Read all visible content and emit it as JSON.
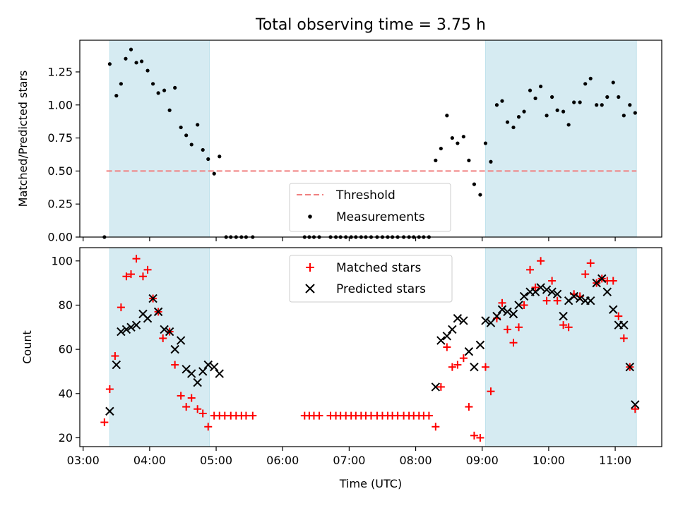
{
  "chart_data": [
    {
      "type": "scatter",
      "panel": "top",
      "title": "Total observing time = 3.75 h",
      "xlabel": "",
      "ylabel": "Matched/Predicted stars",
      "xlim_hours": [
        2.95,
        11.7
      ],
      "ylim": [
        0,
        1.49
      ],
      "yticks": [
        0.0,
        0.25,
        0.5,
        0.75,
        1.0,
        1.25
      ],
      "ytick_labels": [
        "0.00",
        "0.25",
        "0.50",
        "0.75",
        "1.00",
        "1.25"
      ],
      "shaded_spans_hours": [
        [
          3.4,
          4.9
        ],
        [
          9.05,
          11.32
        ]
      ],
      "threshold": {
        "name": "Threshold",
        "value": 0.5,
        "color": "#f08080",
        "style": "dashed"
      },
      "series": [
        {
          "name": "Measurements",
          "color": "#000000",
          "x": [
            3.32,
            3.4,
            3.5,
            3.57,
            3.64,
            3.72,
            3.8,
            3.88,
            3.97,
            4.05,
            4.13,
            4.22,
            4.3,
            4.38,
            4.47,
            4.55,
            4.63,
            4.72,
            4.8,
            4.88,
            4.97,
            5.05,
            5.15,
            5.22,
            5.3,
            5.38,
            5.45,
            5.55,
            6.33,
            6.4,
            6.47,
            6.55,
            6.72,
            6.8,
            6.87,
            6.95,
            7.03,
            7.1,
            7.18,
            7.25,
            7.33,
            7.42,
            7.5,
            7.58,
            7.65,
            7.73,
            7.82,
            7.9,
            7.97,
            8.05,
            8.12,
            8.2,
            8.3,
            8.38,
            8.47,
            8.55,
            8.63,
            8.72,
            8.8,
            8.88,
            8.97,
            9.05,
            9.13,
            9.22,
            9.3,
            9.38,
            9.47,
            9.55,
            9.63,
            9.72,
            9.8,
            9.88,
            9.97,
            10.05,
            10.13,
            10.22,
            10.3,
            10.38,
            10.47,
            10.55,
            10.63,
            10.72,
            10.8,
            10.88,
            10.97,
            11.05,
            11.13,
            11.22,
            11.3
          ],
          "y": [
            0.0,
            1.31,
            1.07,
            1.16,
            1.35,
            1.42,
            1.32,
            1.33,
            1.26,
            1.16,
            1.09,
            1.11,
            0.96,
            1.13,
            0.83,
            0.77,
            0.7,
            0.85,
            0.66,
            0.59,
            0.48,
            0.61,
            0.0,
            0.0,
            0.0,
            0.0,
            0.0,
            0.0,
            0.0,
            0.0,
            0.0,
            0.0,
            0.0,
            0.0,
            0.0,
            0.0,
            0.0,
            0.0,
            0.0,
            0.0,
            0.0,
            0.0,
            0.0,
            0.0,
            0.0,
            0.0,
            0.0,
            0.0,
            0.0,
            0.0,
            0.0,
            0.0,
            0.58,
            0.67,
            0.92,
            0.75,
            0.71,
            0.76,
            0.58,
            0.4,
            0.32,
            0.71,
            0.57,
            1.0,
            1.03,
            0.87,
            0.83,
            0.91,
            0.95,
            1.11,
            1.05,
            1.14,
            0.92,
            1.06,
            0.96,
            0.95,
            0.85,
            1.02,
            1.02,
            1.16,
            1.2,
            1.0,
            1.0,
            1.06,
            1.17,
            1.06,
            0.92,
            1.0,
            0.94
          ]
        },
        {
          "name": "Threshold",
          "color": "#f08080",
          "value": 0.5
        }
      ],
      "legend": {
        "placement": "lower center",
        "entries": [
          "Threshold",
          "Measurements"
        ]
      }
    },
    {
      "type": "scatter",
      "panel": "bottom",
      "title": "",
      "xlabel": "Time (UTC)",
      "ylabel": "Count",
      "xlim_hours": [
        2.95,
        11.7
      ],
      "ylim": [
        16,
        106
      ],
      "yticks": [
        20,
        40,
        60,
        80,
        100
      ],
      "ytick_labels": [
        "20",
        "40",
        "60",
        "80",
        "100"
      ],
      "xticks_hours": [
        3,
        4,
        5,
        6,
        7,
        8,
        9,
        10,
        11
      ],
      "xtick_labels": [
        "03:00",
        "04:00",
        "05:00",
        "06:00",
        "07:00",
        "08:00",
        "09:00",
        "10:00",
        "11:00"
      ],
      "shaded_spans_hours": [
        [
          3.4,
          4.9
        ],
        [
          9.05,
          11.32
        ]
      ],
      "series": [
        {
          "name": "Matched stars",
          "marker": "+",
          "color": "#ff0000",
          "x": [
            3.32,
            3.4,
            3.48,
            3.57,
            3.65,
            3.72,
            3.8,
            3.9,
            3.97,
            4.05,
            4.13,
            4.2,
            4.3,
            4.38,
            4.47,
            4.55,
            4.63,
            4.72,
            4.8,
            4.88,
            4.97,
            5.05,
            5.13,
            5.22,
            5.3,
            5.38,
            5.45,
            5.55,
            6.33,
            6.4,
            6.47,
            6.55,
            6.72,
            6.8,
            6.87,
            6.95,
            7.03,
            7.1,
            7.18,
            7.25,
            7.33,
            7.42,
            7.5,
            7.58,
            7.65,
            7.73,
            7.82,
            7.9,
            7.97,
            8.05,
            8.12,
            8.2,
            8.3,
            8.38,
            8.47,
            8.55,
            8.63,
            8.72,
            8.8,
            8.88,
            8.97,
            9.05,
            9.13,
            9.22,
            9.3,
            9.38,
            9.47,
            9.55,
            9.63,
            9.72,
            9.8,
            9.88,
            9.97,
            10.05,
            10.13,
            10.22,
            10.3,
            10.38,
            10.47,
            10.55,
            10.63,
            10.72,
            10.8,
            10.88,
            10.97,
            11.05,
            11.13,
            11.22,
            11.3
          ],
          "y": [
            27,
            42,
            57,
            79,
            93,
            94,
            101,
            93,
            96,
            83,
            77,
            65,
            68,
            53,
            39,
            34,
            38,
            33,
            31,
            25,
            30,
            30,
            30,
            30,
            30,
            30,
            30,
            30,
            30,
            30,
            30,
            30,
            30,
            30,
            30,
            30,
            30,
            30,
            30,
            30,
            30,
            30,
            30,
            30,
            30,
            30,
            30,
            30,
            30,
            30,
            30,
            30,
            25,
            43,
            61,
            52,
            53,
            56,
            34,
            21,
            20,
            52,
            41,
            74,
            81,
            69,
            63,
            70,
            80,
            96,
            88,
            100,
            82,
            91,
            82,
            71,
            70,
            85,
            84,
            94,
            99,
            90,
            92,
            91,
            91,
            75,
            65,
            52,
            33
          ]
        },
        {
          "name": "Predicted stars",
          "marker": "x",
          "color": "#000000",
          "x": [
            3.4,
            3.5,
            3.57,
            3.65,
            3.72,
            3.8,
            3.9,
            3.97,
            4.05,
            4.13,
            4.22,
            4.3,
            4.38,
            4.47,
            4.55,
            4.63,
            4.72,
            4.8,
            4.88,
            4.97,
            5.05,
            8.3,
            8.38,
            8.47,
            8.55,
            8.63,
            8.72,
            8.8,
            8.88,
            8.97,
            9.05,
            9.13,
            9.22,
            9.3,
            9.38,
            9.47,
            9.55,
            9.63,
            9.72,
            9.8,
            9.88,
            9.97,
            10.05,
            10.13,
            10.22,
            10.3,
            10.38,
            10.47,
            10.55,
            10.63,
            10.72,
            10.8,
            10.88,
            10.97,
            11.05,
            11.13,
            11.22,
            11.3
          ],
          "y": [
            32,
            53,
            68,
            69,
            70,
            71,
            76,
            74,
            83,
            77,
            69,
            68,
            60,
            64,
            51,
            49,
            45,
            50,
            53,
            52,
            49,
            43,
            64,
            66,
            69,
            74,
            73,
            59,
            52,
            62,
            73,
            72,
            75,
            78,
            77,
            76,
            80,
            84,
            86,
            86,
            88,
            87,
            86,
            85,
            75,
            82,
            84,
            83,
            82,
            82,
            90,
            92,
            86,
            78,
            71,
            71,
            52,
            35
          ]
        }
      ],
      "legend": {
        "placement": "upper center",
        "entries": [
          "Matched stars",
          "Predicted stars"
        ]
      }
    }
  ]
}
